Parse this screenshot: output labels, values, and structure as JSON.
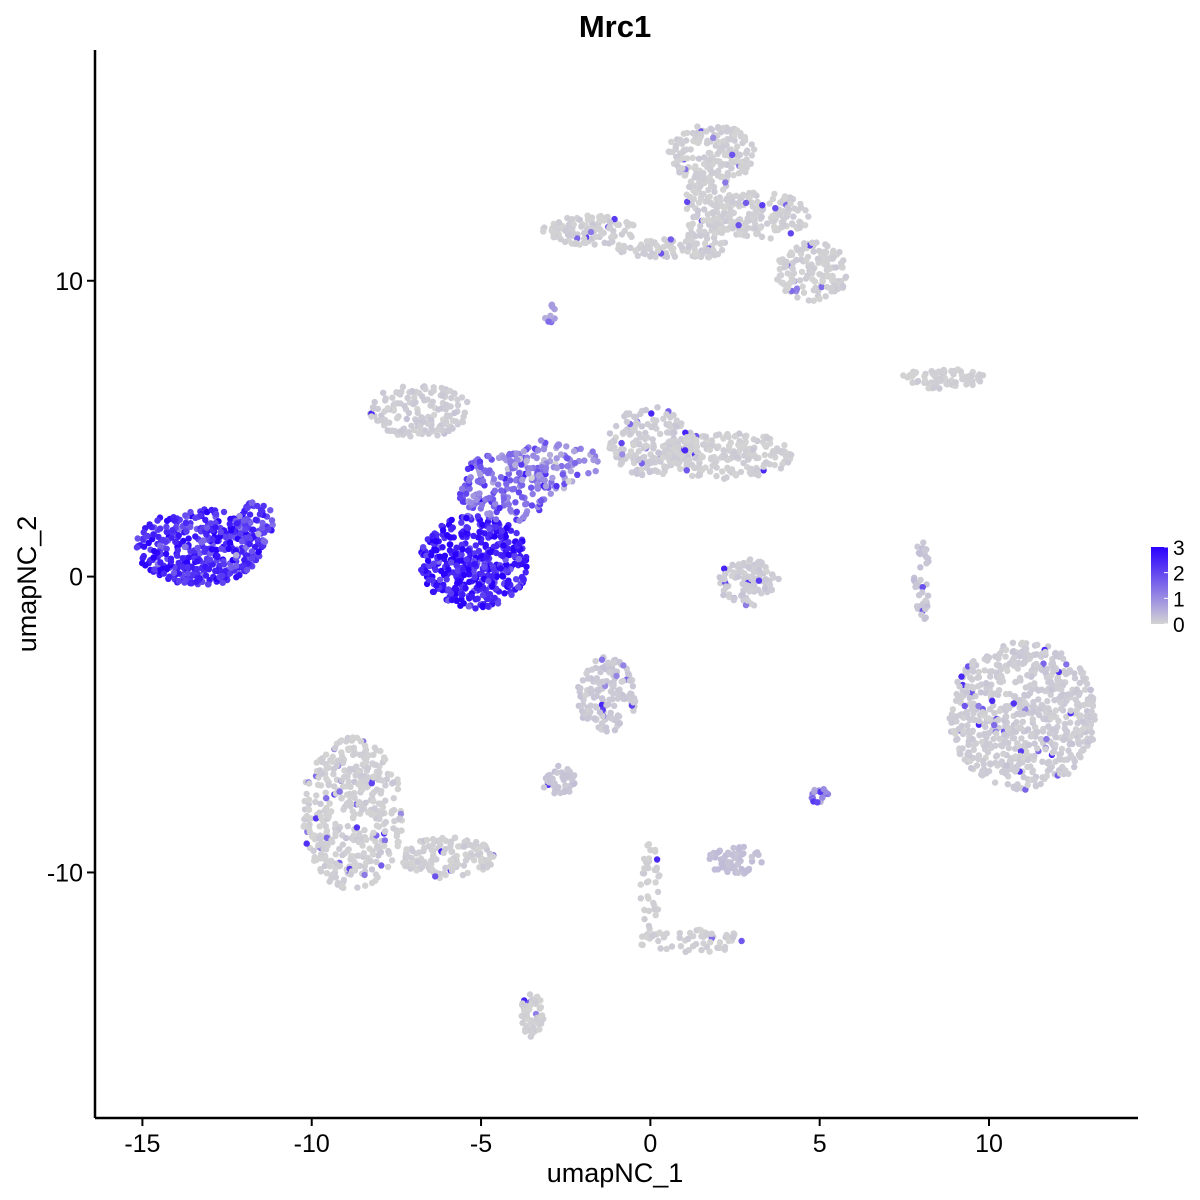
{
  "chart_data": {
    "type": "scatter",
    "title": "Mrc1",
    "xlabel": "umapNC_1",
    "ylabel": "umapNC_2",
    "xlim": [
      -16.4,
      14.4
    ],
    "ylim": [
      -18.3,
      17.8
    ],
    "xticks": [
      -15,
      -10,
      -5,
      0,
      5,
      10
    ],
    "yticks": [
      -10,
      0,
      10
    ],
    "xtick_labels": [
      "-15",
      "-10",
      "-5",
      "0",
      "5",
      "10"
    ],
    "ytick_labels": [
      "-10",
      "0",
      "10"
    ],
    "grid": false,
    "legend": {
      "placement": "right",
      "type": "colorbar",
      "range": [
        0,
        3
      ],
      "ticks": [
        3,
        2,
        1,
        0
      ],
      "tick_labels": [
        "3",
        "2",
        "1",
        "0"
      ],
      "low_color": "#d3d3d3",
      "high_color": "#2a00ff"
    },
    "point_color_low": "#d3d3d3",
    "point_color_high": "#2a00ff",
    "clusters": [
      {
        "x": -13.3,
        "y": 1.0,
        "rx": 1.9,
        "ry": 1.3,
        "expr": 2.4,
        "n": 420
      },
      {
        "x": -11.7,
        "y": 1.8,
        "rx": 0.6,
        "ry": 0.8,
        "expr": 2.0,
        "n": 60
      },
      {
        "x": -5.2,
        "y": 0.5,
        "rx": 1.6,
        "ry": 1.6,
        "expr": 2.6,
        "n": 420
      },
      {
        "x": -4.3,
        "y": 3.0,
        "rx": 1.4,
        "ry": 1.2,
        "expr": 1.5,
        "n": 180
      },
      {
        "x": -2.8,
        "y": 3.8,
        "rx": 1.3,
        "ry": 0.9,
        "expr": 1.0,
        "n": 90
      },
      {
        "x": -6.8,
        "y": 5.6,
        "rx": 1.5,
        "ry": 0.9,
        "expr": 0.1,
        "n": 160
      },
      {
        "x": 0.0,
        "y": 4.6,
        "rx": 1.3,
        "ry": 1.2,
        "expr": 0.1,
        "n": 180
      },
      {
        "x": 2.2,
        "y": 4.1,
        "rx": 2.0,
        "ry": 0.8,
        "expr": 0.05,
        "n": 220
      },
      {
        "x": 1.8,
        "y": 14.3,
        "rx": 1.3,
        "ry": 1.0,
        "expr": 0.05,
        "n": 180
      },
      {
        "x": 1.7,
        "y": 12.3,
        "rx": 0.7,
        "ry": 1.6,
        "expr": 0.05,
        "n": 140
      },
      {
        "x": 3.2,
        "y": 12.2,
        "rx": 1.5,
        "ry": 0.8,
        "expr": 0.05,
        "n": 160
      },
      {
        "x": 4.8,
        "y": 10.3,
        "rx": 1.1,
        "ry": 1.0,
        "expr": 0.05,
        "n": 150
      },
      {
        "x": -1.8,
        "y": 11.7,
        "rx": 1.4,
        "ry": 0.5,
        "expr": 0.05,
        "n": 120
      },
      {
        "x": 0.5,
        "y": 11.1,
        "rx": 1.5,
        "ry": 0.35,
        "expr": 0.05,
        "n": 80
      },
      {
        "x": 8.6,
        "y": 6.7,
        "rx": 1.3,
        "ry": 0.35,
        "expr": 0.05,
        "n": 80
      },
      {
        "x": 11.0,
        "y": -4.7,
        "rx": 2.2,
        "ry": 2.5,
        "expr": 0.1,
        "n": 700
      },
      {
        "x": -8.8,
        "y": -8.0,
        "rx": 1.5,
        "ry": 2.6,
        "expr": 0.05,
        "n": 420
      },
      {
        "x": -6.0,
        "y": -9.5,
        "rx": 1.4,
        "ry": 0.7,
        "expr": 0.05,
        "n": 140
      },
      {
        "x": -3.5,
        "y": -14.8,
        "rx": 0.35,
        "ry": 0.8,
        "expr": 0.05,
        "n": 60
      },
      {
        "x": -1.3,
        "y": -4.0,
        "rx": 0.9,
        "ry": 1.3,
        "expr": 0.15,
        "n": 150
      },
      {
        "x": -2.7,
        "y": -6.9,
        "rx": 0.5,
        "ry": 0.5,
        "expr": 0.2,
        "n": 50
      },
      {
        "x": 2.9,
        "y": -0.2,
        "rx": 0.9,
        "ry": 0.8,
        "expr": 0.1,
        "n": 110
      },
      {
        "x": 2.5,
        "y": -9.6,
        "rx": 0.8,
        "ry": 0.5,
        "expr": 0.3,
        "n": 60
      },
      {
        "x": 1.2,
        "y": -12.3,
        "rx": 1.6,
        "ry": 0.4,
        "expr": 0.05,
        "n": 60
      },
      {
        "x": 0.0,
        "y": -10.5,
        "rx": 0.3,
        "ry": 1.5,
        "expr": 0.05,
        "n": 40
      },
      {
        "x": 8.0,
        "y": -0.2,
        "rx": 0.25,
        "ry": 1.4,
        "expr": 0.2,
        "n": 40
      },
      {
        "x": 5.0,
        "y": -7.4,
        "rx": 0.25,
        "ry": 0.3,
        "expr": 1.2,
        "n": 20
      },
      {
        "x": -3.0,
        "y": 8.9,
        "rx": 0.2,
        "ry": 0.35,
        "expr": 1.0,
        "n": 10
      }
    ]
  }
}
